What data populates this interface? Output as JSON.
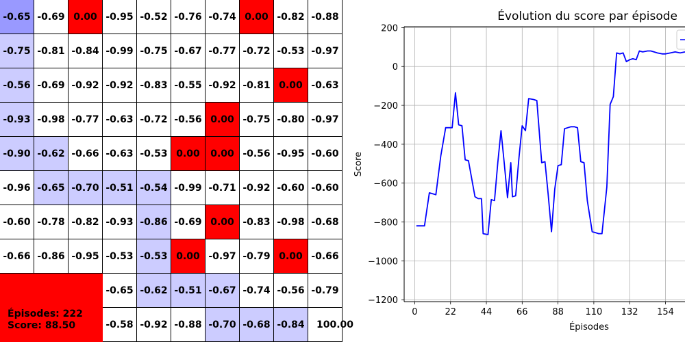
{
  "grid": {
    "rows": [
      [
        [
          "-0.65",
          "h"
        ],
        [
          "-0.69",
          "n"
        ],
        [
          "0.00",
          "o"
        ],
        [
          "-0.95",
          "n"
        ],
        [
          "-0.52",
          "n"
        ],
        [
          "-0.76",
          "n"
        ],
        [
          "-0.74",
          "n"
        ],
        [
          "0.00",
          "o"
        ],
        [
          "-0.82",
          "n"
        ],
        [
          "-0.88",
          "n"
        ]
      ],
      [
        [
          "-0.75",
          "v"
        ],
        [
          "-0.81",
          "n"
        ],
        [
          "-0.84",
          "n"
        ],
        [
          "-0.99",
          "n"
        ],
        [
          "-0.75",
          "n"
        ],
        [
          "-0.67",
          "n"
        ],
        [
          "-0.77",
          "n"
        ],
        [
          "-0.72",
          "n"
        ],
        [
          "-0.53",
          "n"
        ],
        [
          "-0.97",
          "n"
        ]
      ],
      [
        [
          "-0.56",
          "v"
        ],
        [
          "-0.69",
          "n"
        ],
        [
          "-0.92",
          "n"
        ],
        [
          "-0.92",
          "n"
        ],
        [
          "-0.83",
          "n"
        ],
        [
          "-0.55",
          "n"
        ],
        [
          "-0.92",
          "n"
        ],
        [
          "-0.81",
          "n"
        ],
        [
          "0.00",
          "o"
        ],
        [
          "-0.63",
          "n"
        ]
      ],
      [
        [
          "-0.93",
          "v"
        ],
        [
          "-0.98",
          "n"
        ],
        [
          "-0.77",
          "n"
        ],
        [
          "-0.63",
          "n"
        ],
        [
          "-0.72",
          "n"
        ],
        [
          "-0.56",
          "n"
        ],
        [
          "0.00",
          "o"
        ],
        [
          "-0.75",
          "n"
        ],
        [
          "-0.80",
          "n"
        ],
        [
          "-0.97",
          "n"
        ]
      ],
      [
        [
          "-0.90",
          "v"
        ],
        [
          "-0.62",
          "v"
        ],
        [
          "-0.66",
          "n"
        ],
        [
          "-0.63",
          "n"
        ],
        [
          "-0.53",
          "n"
        ],
        [
          "0.00",
          "o"
        ],
        [
          "0.00",
          "o"
        ],
        [
          "-0.56",
          "n"
        ],
        [
          "-0.95",
          "n"
        ],
        [
          "-0.60",
          "n"
        ]
      ],
      [
        [
          "-0.96",
          "n"
        ],
        [
          "-0.65",
          "v"
        ],
        [
          "-0.70",
          "v"
        ],
        [
          "-0.51",
          "v"
        ],
        [
          "-0.54",
          "v"
        ],
        [
          "-0.99",
          "n"
        ],
        [
          "-0.71",
          "n"
        ],
        [
          "-0.92",
          "n"
        ],
        [
          "-0.60",
          "n"
        ],
        [
          "-0.60",
          "n"
        ]
      ],
      [
        [
          "-0.60",
          "n"
        ],
        [
          "-0.78",
          "n"
        ],
        [
          "-0.82",
          "n"
        ],
        [
          "-0.93",
          "n"
        ],
        [
          "-0.86",
          "v"
        ],
        [
          "-0.69",
          "n"
        ],
        [
          "0.00",
          "o"
        ],
        [
          "-0.83",
          "n"
        ],
        [
          "-0.98",
          "n"
        ],
        [
          "-0.68",
          "n"
        ]
      ],
      [
        [
          "-0.66",
          "n"
        ],
        [
          "-0.86",
          "n"
        ],
        [
          "-0.95",
          "n"
        ],
        [
          "-0.53",
          "n"
        ],
        [
          "-0.53",
          "v"
        ],
        [
          "0.00",
          "o"
        ],
        [
          "-0.97",
          "n"
        ],
        [
          "-0.79",
          "n"
        ],
        [
          "0.00",
          "o"
        ],
        [
          "-0.66",
          "n"
        ]
      ],
      [
        [
          null,
          "o"
        ],
        [
          null,
          "o"
        ],
        [
          null,
          "o"
        ],
        [
          "-0.65",
          "n"
        ],
        [
          "-0.62",
          "v"
        ],
        [
          "-0.51",
          "v"
        ],
        [
          "-0.67",
          "v"
        ],
        [
          "-0.74",
          "n"
        ],
        [
          "-0.56",
          "n"
        ],
        [
          "-0.79",
          "n"
        ]
      ],
      [
        [
          null,
          "o"
        ],
        [
          null,
          "o"
        ],
        [
          null,
          "o"
        ],
        [
          "-0.58",
          "n"
        ],
        [
          "-0.92",
          "n"
        ],
        [
          "-0.88",
          "n"
        ],
        [
          "-0.70",
          "v"
        ],
        [
          "-0.68",
          "v"
        ],
        [
          "-0.84",
          "v"
        ],
        [
          "100.00",
          "n"
        ]
      ]
    ],
    "colors": {
      "n": "#ffffff",
      "v": "#ccccff",
      "h": "#9999ff",
      "o": "#ff0000"
    }
  },
  "info": {
    "episodes_label": "Épisodes: 222",
    "score_label": "Score: 88.50"
  },
  "chart_data": {
    "type": "line",
    "title": "Évolution du score par épisode",
    "xlabel": "Épisodes",
    "ylabel": "Score",
    "xlim": [
      -6.5,
      166
    ],
    "ylim": [
      -1210,
      205
    ],
    "xticks": [
      0,
      22,
      44,
      66,
      88,
      110,
      132,
      154
    ],
    "yticks": [
      -1200,
      -1000,
      -800,
      -600,
      -400,
      -200,
      0,
      200
    ],
    "grid": true,
    "legend_position": "top-right",
    "series": [
      {
        "color": "#0000ff",
        "x": [
          1,
          4,
          6,
          9,
          13,
          16,
          19,
          21,
          23,
          25,
          27,
          29,
          31,
          33,
          37,
          39,
          41,
          42,
          45,
          47,
          49,
          51,
          53,
          55,
          57,
          59,
          60,
          62,
          64,
          66,
          68,
          70,
          73,
          75,
          78,
          80,
          82,
          84,
          86,
          88,
          90,
          92,
          94,
          96,
          98,
          100,
          102,
          104,
          106,
          109,
          111,
          113,
          115,
          118,
          120,
          122,
          124,
          126,
          128,
          130,
          132,
          134,
          136,
          138,
          140,
          143,
          145,
          147,
          149,
          152,
          154,
          157,
          160,
          163,
          166
        ],
        "y": [
          -820,
          -820,
          -820,
          -650,
          -660,
          -460,
          -315,
          -315,
          -315,
          -135,
          -300,
          -305,
          -480,
          -485,
          -670,
          -680,
          -680,
          -860,
          -865,
          -685,
          -690,
          -495,
          -330,
          -500,
          -675,
          -495,
          -670,
          -665,
          -470,
          -305,
          -330,
          -165,
          -170,
          -175,
          -495,
          -490,
          -660,
          -850,
          -630,
          -510,
          -505,
          -320,
          -315,
          -310,
          -310,
          -315,
          -490,
          -495,
          -690,
          -850,
          -855,
          -860,
          -860,
          -620,
          -195,
          -155,
          70,
          65,
          70,
          25,
          35,
          40,
          35,
          80,
          75,
          80,
          80,
          75,
          70,
          65,
          65,
          70,
          75,
          70,
          75
        ]
      }
    ]
  }
}
